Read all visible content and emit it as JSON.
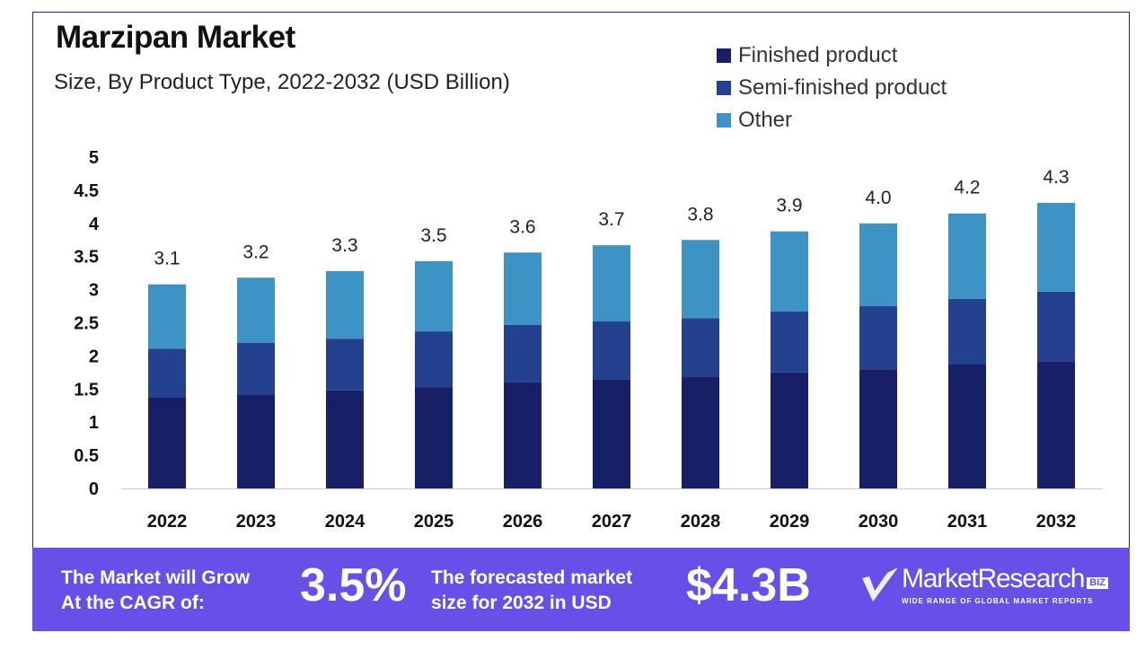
{
  "chart_data": {
    "type": "bar",
    "stacked": true,
    "title": "Marzipan Market",
    "subtitle": "Size, By Product Type, 2022-2032 (USD Billion)",
    "categories": [
      "2022",
      "2023",
      "2024",
      "2025",
      "2026",
      "2027",
      "2028",
      "2029",
      "2030",
      "2031",
      "2032"
    ],
    "series": [
      {
        "name": "Finished product",
        "color": "#172066",
        "values": [
          1.38,
          1.42,
          1.48,
          1.53,
          1.6,
          1.65,
          1.68,
          1.75,
          1.8,
          1.87,
          1.92
        ]
      },
      {
        "name": "Semi-finished product",
        "color": "#23418f",
        "values": [
          0.73,
          0.78,
          0.78,
          0.84,
          0.87,
          0.87,
          0.89,
          0.92,
          0.95,
          0.99,
          1.05
        ]
      },
      {
        "name": "Other",
        "color": "#3d93c3",
        "values": [
          0.97,
          0.98,
          1.02,
          1.06,
          1.09,
          1.15,
          1.18,
          1.21,
          1.25,
          1.29,
          1.34
        ]
      }
    ],
    "totals_labels": [
      "3.1",
      "3.2",
      "3.3",
      "3.5",
      "3.6",
      "3.7",
      "3.8",
      "3.9",
      "4.0",
      "4.2",
      "4.3"
    ],
    "yticks": [
      "0",
      "0.5",
      "1",
      "1.5",
      "2",
      "2.5",
      "3",
      "3.5",
      "4",
      "4.5",
      "5"
    ],
    "ylim": [
      0,
      5
    ],
    "grid": false,
    "legend": "top-right"
  },
  "banner": {
    "cagr_text_1": "The Market will Grow",
    "cagr_text_2": "At the CAGR of:",
    "cagr_value": "3.5%",
    "forecast_text_1": "The forecasted market",
    "forecast_text_2": "size for 2032 in USD",
    "forecast_value": "$4.3B",
    "background": "#6650e8"
  },
  "logo": {
    "name": "MarketResearch",
    "badge": "BIZ",
    "tagline": "WIDE RANGE OF GLOBAL MARKET REPORTS"
  }
}
